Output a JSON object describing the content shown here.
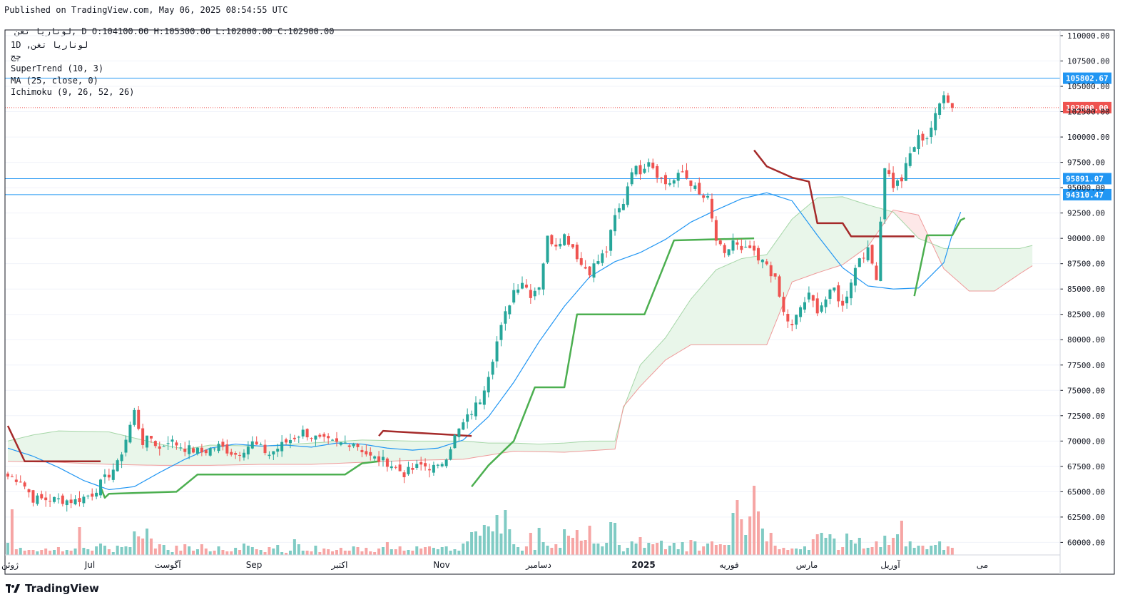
{
  "header": {
    "published": "Published on TradingView.com, May 06, 2025 08:54:55 UTC",
    "symbol": "لوناریا تغن",
    "interval": "D",
    "open_label": "O:104100.00",
    "high_label": "H:105300.00",
    "low_label": "L:102000.00",
    "close_label": "C:102900.00"
  },
  "legend": {
    "line1": "1D ,لوناریا تغن",
    "line2": "چج",
    "line3": "SuperTrend (10, 3)",
    "line4": "MA (25, close, 0)",
    "line5": "Ichimoku (9, 26, 52, 26)"
  },
  "footer": {
    "brand": "TradingView",
    "logo_icon": "tradingview-logo-icon"
  },
  "colors": {
    "up": "#26a69a",
    "down": "#ef5350",
    "supertrend_up": "#4caf50",
    "supertrend_down": "#a52a2a",
    "ma": "#2196f3",
    "cloud_green": "#e8f5e9",
    "cloud_red": "#fde7e7",
    "hline": "#2196f3",
    "last_price": "#ef5350"
  },
  "chart_data": {
    "type": "candlestick",
    "y_axis_range": [
      59000,
      111000
    ],
    "y_ticks": [
      "110000.00",
      "107500.00",
      "105000.00",
      "102500.00",
      "100000.00",
      "97500.00",
      "95000.00",
      "92500.00",
      "90000.00",
      "87500.00",
      "85000.00",
      "82500.00",
      "80000.00",
      "77500.00",
      "75000.00",
      "72500.00",
      "70000.00",
      "67500.00",
      "65000.00",
      "62500.00",
      "60000.00"
    ],
    "x_labels": [
      "ژوئن",
      "Jul",
      "آگوست",
      "Sep",
      "اکتبر",
      "Nov",
      "دسامبر",
      "2025",
      "فوریه",
      "مارس",
      "آوریل",
      "می"
    ],
    "bold_x_labels": [
      "2025"
    ],
    "horizontal_levels": [
      {
        "label": "105802.67",
        "value": 105802.67
      },
      {
        "label": "95891.07",
        "value": 95891.07
      },
      {
        "label": "94310.47",
        "value": 94310.47
      }
    ],
    "last_price": {
      "label": "102900.00",
      "value": 102900
    },
    "ma_anchors": [
      [
        0,
        69300
      ],
      [
        6,
        68500
      ],
      [
        12,
        67400
      ],
      [
        18,
        66100
      ],
      [
        24,
        65200
      ],
      [
        30,
        65500
      ],
      [
        36,
        66900
      ],
      [
        42,
        68200
      ],
      [
        48,
        69300
      ],
      [
        54,
        69700
      ],
      [
        60,
        69500
      ],
      [
        66,
        69600
      ],
      [
        72,
        69400
      ],
      [
        78,
        69800
      ],
      [
        84,
        69700
      ],
      [
        90,
        69300
      ],
      [
        96,
        69100
      ],
      [
        102,
        69300
      ],
      [
        108,
        70100
      ],
      [
        114,
        72400
      ],
      [
        120,
        75800
      ],
      [
        126,
        79800
      ],
      [
        132,
        83300
      ],
      [
        138,
        86200
      ],
      [
        144,
        87700
      ],
      [
        150,
        88600
      ],
      [
        156,
        89900
      ],
      [
        162,
        91600
      ],
      [
        168,
        92800
      ],
      [
        174,
        93900
      ],
      [
        180,
        94500
      ],
      [
        186,
        93700
      ],
      [
        192,
        90300
      ],
      [
        198,
        87100
      ],
      [
        204,
        85300
      ],
      [
        210,
        85000
      ],
      [
        216,
        85100
      ],
      [
        222,
        87600
      ],
      [
        224,
        90400
      ],
      [
        226,
        92600
      ]
    ],
    "supertrend_segments": [
      {
        "trend": "down",
        "points": [
          [
            0,
            71500
          ],
          [
            4,
            68000
          ],
          [
            22,
            68000
          ]
        ]
      },
      {
        "trend": "up",
        "points": [
          [
            22,
            65500
          ],
          [
            23,
            64400
          ],
          [
            24,
            64800
          ],
          [
            40,
            65000
          ],
          [
            45,
            66700
          ],
          [
            80,
            66700
          ],
          [
            84,
            67800
          ],
          [
            88,
            68000
          ]
        ]
      },
      {
        "trend": "down",
        "points": [
          [
            88,
            70500
          ],
          [
            89,
            71000
          ],
          [
            110,
            70500
          ]
        ]
      },
      {
        "trend": "up",
        "points": [
          [
            110,
            65500
          ],
          [
            114,
            67600
          ],
          [
            120,
            70000
          ],
          [
            125,
            75300
          ],
          [
            132,
            75300
          ],
          [
            135,
            82500
          ],
          [
            151,
            82500
          ],
          [
            156,
            87700
          ],
          [
            158,
            89800
          ],
          [
            177,
            90000
          ]
        ]
      },
      {
        "trend": "down",
        "points": [
          [
            177,
            98700
          ],
          [
            180,
            97100
          ],
          [
            186,
            96000
          ],
          [
            190,
            95600
          ],
          [
            192,
            91500
          ],
          [
            198,
            91500
          ],
          [
            200,
            90200
          ],
          [
            215,
            90200
          ]
        ]
      },
      {
        "trend": "up",
        "points": [
          [
            215,
            84300
          ],
          [
            218,
            90300
          ],
          [
            224,
            90300
          ],
          [
            226,
            91800
          ],
          [
            227,
            92000
          ]
        ]
      }
    ],
    "ichimoku_cloud": {
      "span_a": [
        [
          0,
          70000
        ],
        [
          6,
          70600
        ],
        [
          12,
          71000
        ],
        [
          24,
          70900
        ],
        [
          30,
          70300
        ],
        [
          36,
          69700
        ],
        [
          42,
          69200
        ],
        [
          48,
          69600
        ],
        [
          60,
          69500
        ],
        [
          72,
          69800
        ],
        [
          84,
          70100
        ],
        [
          96,
          70000
        ],
        [
          108,
          70000
        ],
        [
          114,
          69800
        ],
        [
          120,
          69800
        ],
        [
          126,
          69700
        ],
        [
          132,
          69800
        ],
        [
          138,
          70000
        ],
        [
          144,
          70000
        ],
        [
          146,
          73200
        ],
        [
          150,
          77500
        ],
        [
          156,
          80200
        ],
        [
          162,
          84000
        ],
        [
          168,
          86900
        ],
        [
          174,
          88000
        ],
        [
          180,
          88400
        ],
        [
          186,
          91900
        ],
        [
          192,
          94000
        ],
        [
          198,
          94100
        ],
        [
          204,
          93300
        ],
        [
          210,
          92600
        ],
        [
          216,
          90000
        ],
        [
          222,
          89000
        ],
        [
          228,
          89000
        ],
        [
          234,
          89000
        ],
        [
          240,
          89000
        ],
        [
          243,
          89300
        ]
      ],
      "span_b": [
        [
          0,
          68000
        ],
        [
          12,
          67900
        ],
        [
          24,
          67700
        ],
        [
          36,
          67600
        ],
        [
          48,
          67600
        ],
        [
          60,
          67700
        ],
        [
          72,
          67700
        ],
        [
          84,
          67900
        ],
        [
          96,
          68100
        ],
        [
          108,
          68200
        ],
        [
          120,
          69000
        ],
        [
          132,
          68900
        ],
        [
          144,
          69200
        ],
        [
          146,
          73400
        ],
        [
          150,
          75400
        ],
        [
          156,
          78000
        ],
        [
          162,
          79500
        ],
        [
          174,
          79500
        ],
        [
          180,
          79500
        ],
        [
          186,
          85700
        ],
        [
          192,
          86600
        ],
        [
          198,
          87400
        ],
        [
          204,
          89200
        ],
        [
          210,
          92800
        ],
        [
          216,
          92300
        ],
        [
          222,
          87000
        ],
        [
          228,
          84800
        ],
        [
          234,
          84800
        ],
        [
          240,
          86500
        ],
        [
          243,
          87300
        ]
      ],
      "note": "x values are bar indices"
    },
    "volume_heights": [
      17,
      64,
      8,
      10,
      6,
      7,
      7,
      5,
      7,
      9,
      6,
      7,
      11,
      5,
      7,
      6,
      9,
      39,
      10,
      8,
      6,
      12,
      16,
      13,
      8,
      4,
      13,
      11,
      12,
      11,
      33,
      26,
      23,
      37,
      23,
      9,
      15,
      14,
      7,
      4,
      13,
      6,
      15,
      12,
      6,
      8,
      15,
      9,
      5,
      6,
      12,
      7,
      5,
      5,
      10,
      7,
      16,
      13,
      11,
      8,
      7,
      4,
      11,
      9,
      14,
      4,
      3,
      6,
      22,
      15,
      6,
      6,
      5,
      13,
      4,
      9,
      8,
      5,
      7,
      10,
      6,
      6,
      12,
      11,
      5,
      10,
      5,
      4,
      9,
      11,
      18,
      8,
      8,
      12,
      6,
      7,
      6,
      12,
      9,
      11,
      12,
      10,
      8,
      11,
      12,
      6,
      8,
      6,
      16,
      19,
      32,
      33,
      27,
      42,
      40,
      33,
      56,
      30,
      63,
      36,
      15,
      11,
      6,
      12,
      31,
      7,
      38,
      18,
      13,
      10,
      15,
      10,
      36,
      27,
      24,
      35,
      20,
      21,
      41,
      16,
      16,
      12,
      17,
      46,
      45,
      14,
      5,
      10,
      19,
      16,
      25,
      10,
      17,
      15,
      17,
      20,
      8,
      13,
      17,
      8,
      18,
      5,
      21,
      19,
      6,
      12,
      16,
      19,
      14,
      15,
      14,
      14,
      59,
      77,
      50,
      28,
      54,
      97,
      61,
      37,
      19,
      31,
      13,
      8,
      10,
      7,
      9,
      9,
      8,
      12,
      7,
      22,
      29,
      31,
      24,
      29,
      23,
      7,
      11,
      30,
      21,
      16,
      24,
      9,
      10,
      11,
      19,
      11,
      27,
      14,
      24,
      29,
      48,
      12,
      19,
      10,
      13,
      13,
      8,
      13,
      14,
      19,
      7,
      12,
      10,
      19,
      32,
      33,
      41,
      44,
      39,
      17,
      29,
      19,
      26,
      44,
      48,
      29,
      7,
      8,
      12,
      10,
      13,
      11,
      17,
      7,
      10,
      16,
      10,
      13,
      13,
      19,
      17,
      32,
      16,
      42,
      29,
      39,
      31,
      7,
      14,
      12,
      6,
      14,
      9,
      12,
      17,
      11,
      16,
      21,
      30,
      59,
      82,
      55
    ],
    "candles_ohlc_note": "generated from x-anchors below (bar index, close price)",
    "close_anchors": [
      [
        0,
        66500
      ],
      [
        3,
        66200
      ],
      [
        6,
        64300
      ],
      [
        12,
        64200
      ],
      [
        16,
        64100
      ],
      [
        20,
        64800
      ],
      [
        22,
        65800
      ],
      [
        26,
        67700
      ],
      [
        28,
        70200
      ],
      [
        30,
        72900
      ],
      [
        32,
        69900
      ],
      [
        34,
        70300
      ],
      [
        36,
        69200
      ],
      [
        38,
        70100
      ],
      [
        42,
        69300
      ],
      [
        46,
        68900
      ],
      [
        50,
        69500
      ],
      [
        54,
        68700
      ],
      [
        58,
        69800
      ],
      [
        62,
        68700
      ],
      [
        66,
        69900
      ],
      [
        70,
        70900
      ],
      [
        74,
        70100
      ],
      [
        78,
        69700
      ],
      [
        82,
        69900
      ],
      [
        86,
        68400
      ],
      [
        90,
        67900
      ],
      [
        94,
        66800
      ],
      [
        98,
        67600
      ],
      [
        102,
        67300
      ],
      [
        104,
        68600
      ],
      [
        106,
        70400
      ],
      [
        108,
        71700
      ],
      [
        112,
        74100
      ],
      [
        114,
        76700
      ],
      [
        116,
        79800
      ],
      [
        118,
        82500
      ],
      [
        120,
        84900
      ],
      [
        122,
        85800
      ],
      [
        124,
        84500
      ],
      [
        126,
        85400
      ],
      [
        128,
        90000
      ],
      [
        130,
        89500
      ],
      [
        132,
        90300
      ],
      [
        134,
        89200
      ],
      [
        136,
        87400
      ],
      [
        138,
        86800
      ],
      [
        140,
        87800
      ],
      [
        142,
        88800
      ],
      [
        144,
        92100
      ],
      [
        146,
        93600
      ],
      [
        148,
        96900
      ],
      [
        150,
        96700
      ],
      [
        152,
        97800
      ],
      [
        154,
        96400
      ],
      [
        156,
        95400
      ],
      [
        158,
        95700
      ],
      [
        160,
        96500
      ],
      [
        162,
        95500
      ],
      [
        164,
        94200
      ],
      [
        166,
        93800
      ],
      [
        168,
        89800
      ],
      [
        170,
        88200
      ],
      [
        172,
        89800
      ],
      [
        174,
        88600
      ],
      [
        176,
        89000
      ],
      [
        178,
        87700
      ],
      [
        180,
        87500
      ],
      [
        182,
        85800
      ],
      [
        184,
        82600
      ],
      [
        186,
        81200
      ],
      [
        188,
        83200
      ],
      [
        190,
        84300
      ],
      [
        192,
        83000
      ],
      [
        194,
        84000
      ],
      [
        196,
        85000
      ],
      [
        198,
        83200
      ],
      [
        200,
        85900
      ],
      [
        202,
        88200
      ],
      [
        204,
        88700
      ],
      [
        206,
        86300
      ],
      [
        208,
        97200
      ],
      [
        210,
        95200
      ],
      [
        212,
        95800
      ],
      [
        214,
        98300
      ],
      [
        216,
        99900
      ],
      [
        218,
        100000
      ],
      [
        220,
        102000
      ],
      [
        222,
        104500
      ],
      [
        224,
        102900
      ]
    ]
  }
}
